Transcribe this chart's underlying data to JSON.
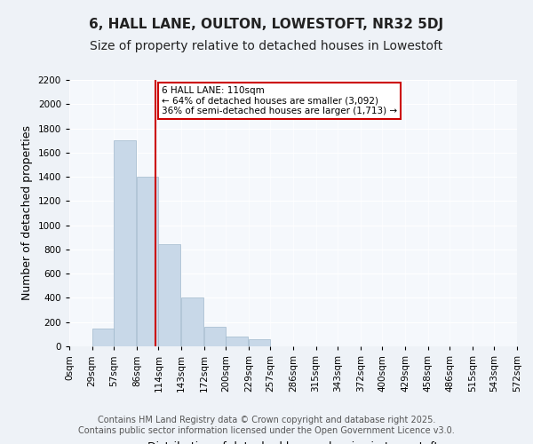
{
  "title": "6, HALL LANE, OULTON, LOWESTOFT, NR32 5DJ",
  "subtitle": "Size of property relative to detached houses in Lowestoft",
  "xlabel": "Distribution of detached houses by size in Lowestoft",
  "ylabel": "Number of detached properties",
  "bar_values": [
    0,
    150,
    1700,
    1400,
    840,
    400,
    160,
    80,
    60,
    0,
    0,
    0,
    0,
    0,
    0,
    0,
    0,
    0,
    0,
    0
  ],
  "bin_edges": [
    0,
    29,
    57,
    86,
    114,
    143,
    172,
    200,
    229,
    257,
    286,
    315,
    343,
    372,
    400,
    429,
    458,
    486,
    515,
    543,
    572
  ],
  "bin_labels": [
    "0sqm",
    "29sqm",
    "57sqm",
    "86sqm",
    "114sqm",
    "143sqm",
    "172sqm",
    "200sqm",
    "229sqm",
    "257sqm",
    "286sqm",
    "315sqm",
    "343sqm",
    "372sqm",
    "400sqm",
    "429sqm",
    "458sqm",
    "486sqm",
    "515sqm",
    "543sqm",
    "572sqm"
  ],
  "bar_color": "#c8d8e8",
  "bar_edgecolor": "#a0b8cc",
  "property_line_x": 110,
  "property_line_color": "#cc0000",
  "annotation_text": "6 HALL LANE: 110sqm\n← 64% of detached houses are smaller (3,092)\n36% of semi-detached houses are larger (1,713) →",
  "annotation_box_color": "#ffffff",
  "annotation_box_edgecolor": "#cc0000",
  "ylim": [
    0,
    2200
  ],
  "yticks": [
    0,
    200,
    400,
    600,
    800,
    1000,
    1200,
    1400,
    1600,
    1800,
    2000,
    2200
  ],
  "bg_color": "#eef2f7",
  "plot_bg_color": "#f5f8fc",
  "grid_color": "#ffffff",
  "footer_text": "Contains HM Land Registry data © Crown copyright and database right 2025.\nContains public sector information licensed under the Open Government Licence v3.0.",
  "title_fontsize": 11,
  "subtitle_fontsize": 10,
  "xlabel_fontsize": 9,
  "ylabel_fontsize": 9,
  "tick_fontsize": 7.5,
  "footer_fontsize": 7
}
